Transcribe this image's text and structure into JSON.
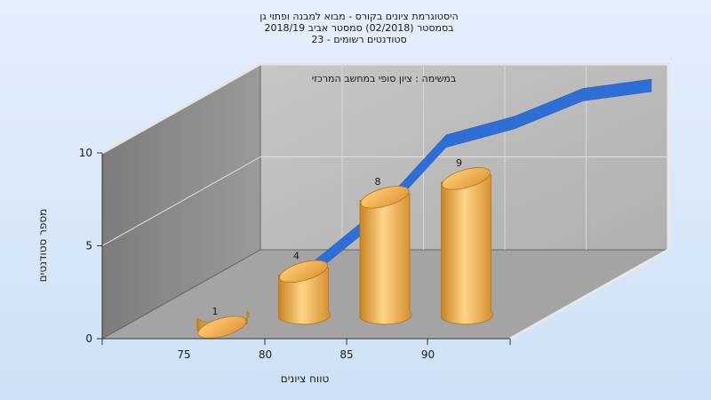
{
  "chart_data": {
    "type": "bar",
    "title_lines": [
      "היסטוגרמת ציונים בקורס - מבוא למבנה ופתוי גן",
      "בסמסטר  (02/2018)  סמסטר אביב 2018/19",
      "סטודנטים רשומים - 23"
    ],
    "subtitle": "במשימה : ציון סופי במחשב המרכזי",
    "categories": [
      "75",
      "80",
      "85",
      "90"
    ],
    "values": [
      1,
      4,
      8,
      9
    ],
    "data_labels": [
      "1",
      "4",
      "8",
      "9"
    ],
    "trend_line": [
      1,
      4,
      8,
      9,
      10.5,
      11
    ],
    "xlabel": "טווח ציונים",
    "ylabel": "מספר סטודנטים",
    "y_ticks": [
      "0",
      "5",
      "10"
    ],
    "ylim": [
      0,
      10
    ],
    "grid": true,
    "colors": {
      "bar": "#f0a83a",
      "bar_light": "#ffd58a",
      "bar_dark": "#c27c1d",
      "trend": "#2d6fd6",
      "back_wall": "#b9b9b9",
      "side_wall": "#8a8a8a",
      "floor": "#a3a3a3"
    }
  }
}
